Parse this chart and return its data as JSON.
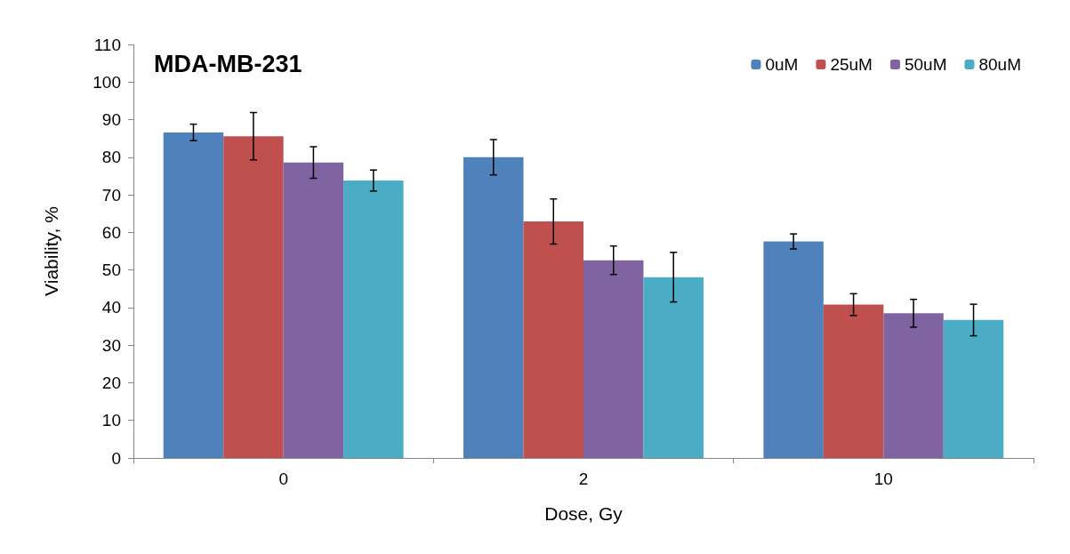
{
  "chart_data": {
    "type": "bar",
    "title": "MDA-MB-231",
    "xlabel": "Dose, Gy",
    "ylabel": "Viability, %",
    "categories": [
      "0",
      "2",
      "10"
    ],
    "series": [
      {
        "name": "0uM",
        "color": "#4f81bd",
        "values": [
          86.6,
          80.0,
          57.6
        ],
        "errors": [
          2.2,
          4.7,
          2.0
        ]
      },
      {
        "name": "25uM",
        "color": "#c0504d",
        "values": [
          85.6,
          62.9,
          40.8
        ],
        "errors": [
          6.3,
          6.0,
          2.9
        ]
      },
      {
        "name": "50uM",
        "color": "#8064a2",
        "values": [
          78.6,
          52.6,
          38.5
        ],
        "errors": [
          4.2,
          3.8,
          3.7
        ]
      },
      {
        "name": "80uM",
        "color": "#4bacc6",
        "values": [
          73.8,
          48.1,
          36.7
        ],
        "errors": [
          2.8,
          6.6,
          4.2
        ]
      }
    ],
    "ylim": [
      0,
      110
    ],
    "yticks": [
      0,
      10,
      20,
      30,
      40,
      50,
      60,
      70,
      80,
      90,
      100,
      110
    ],
    "grid": false,
    "legend": "top right"
  }
}
